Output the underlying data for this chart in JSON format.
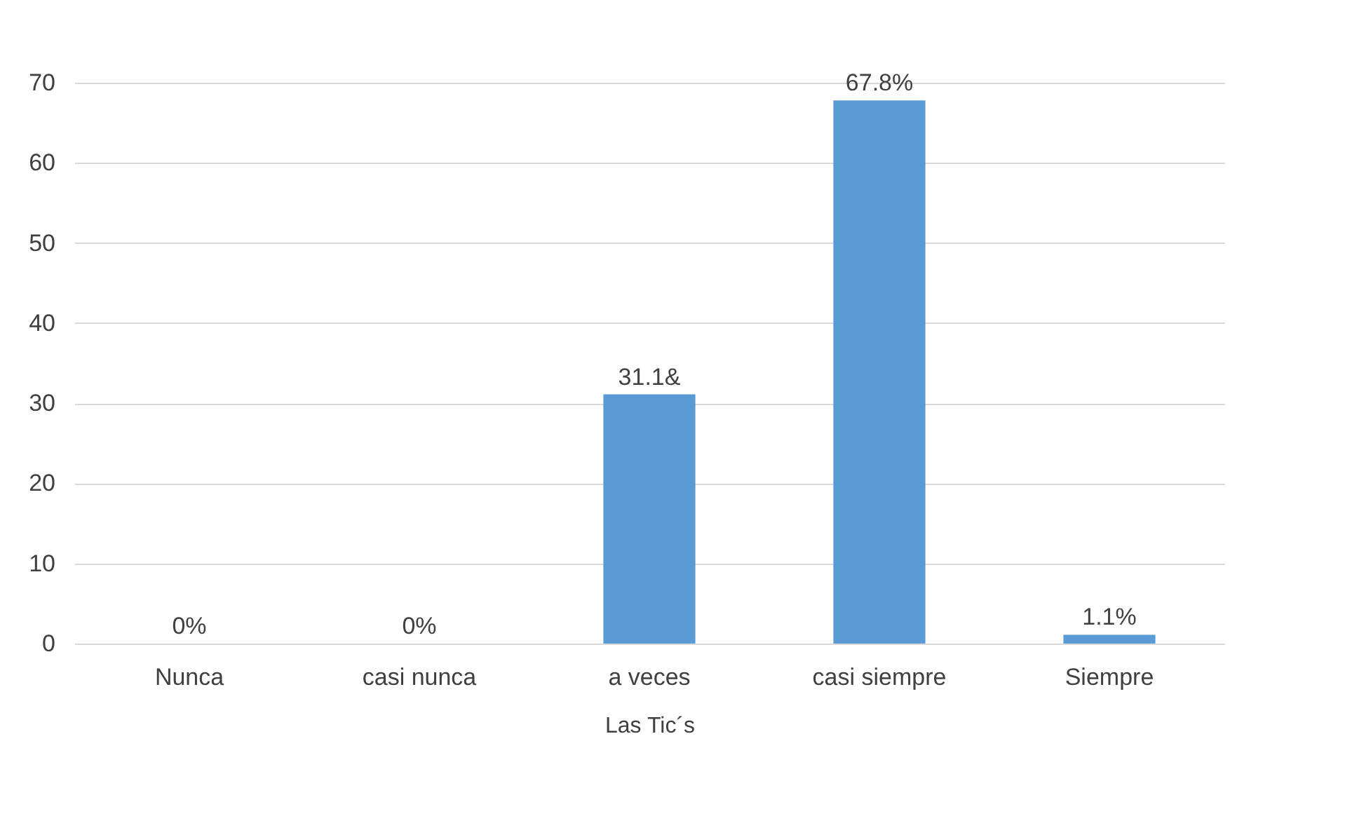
{
  "chart_data": {
    "type": "bar",
    "xlabel": "Las Tic´s",
    "categories": [
      "Nunca",
      "casi nunca",
      "a veces",
      "casi siempre",
      "Siempre"
    ],
    "values": [
      0,
      0,
      31.1,
      67.8,
      1.1
    ],
    "value_labels": [
      "0%",
      "0%",
      "31.1&",
      "67.8%",
      "1.1%"
    ],
    "color": "#5b9bd5",
    "ylim": [
      0,
      70
    ],
    "yticks": [
      0,
      10,
      20,
      30,
      40,
      50,
      60,
      70
    ],
    "grid": "y"
  }
}
